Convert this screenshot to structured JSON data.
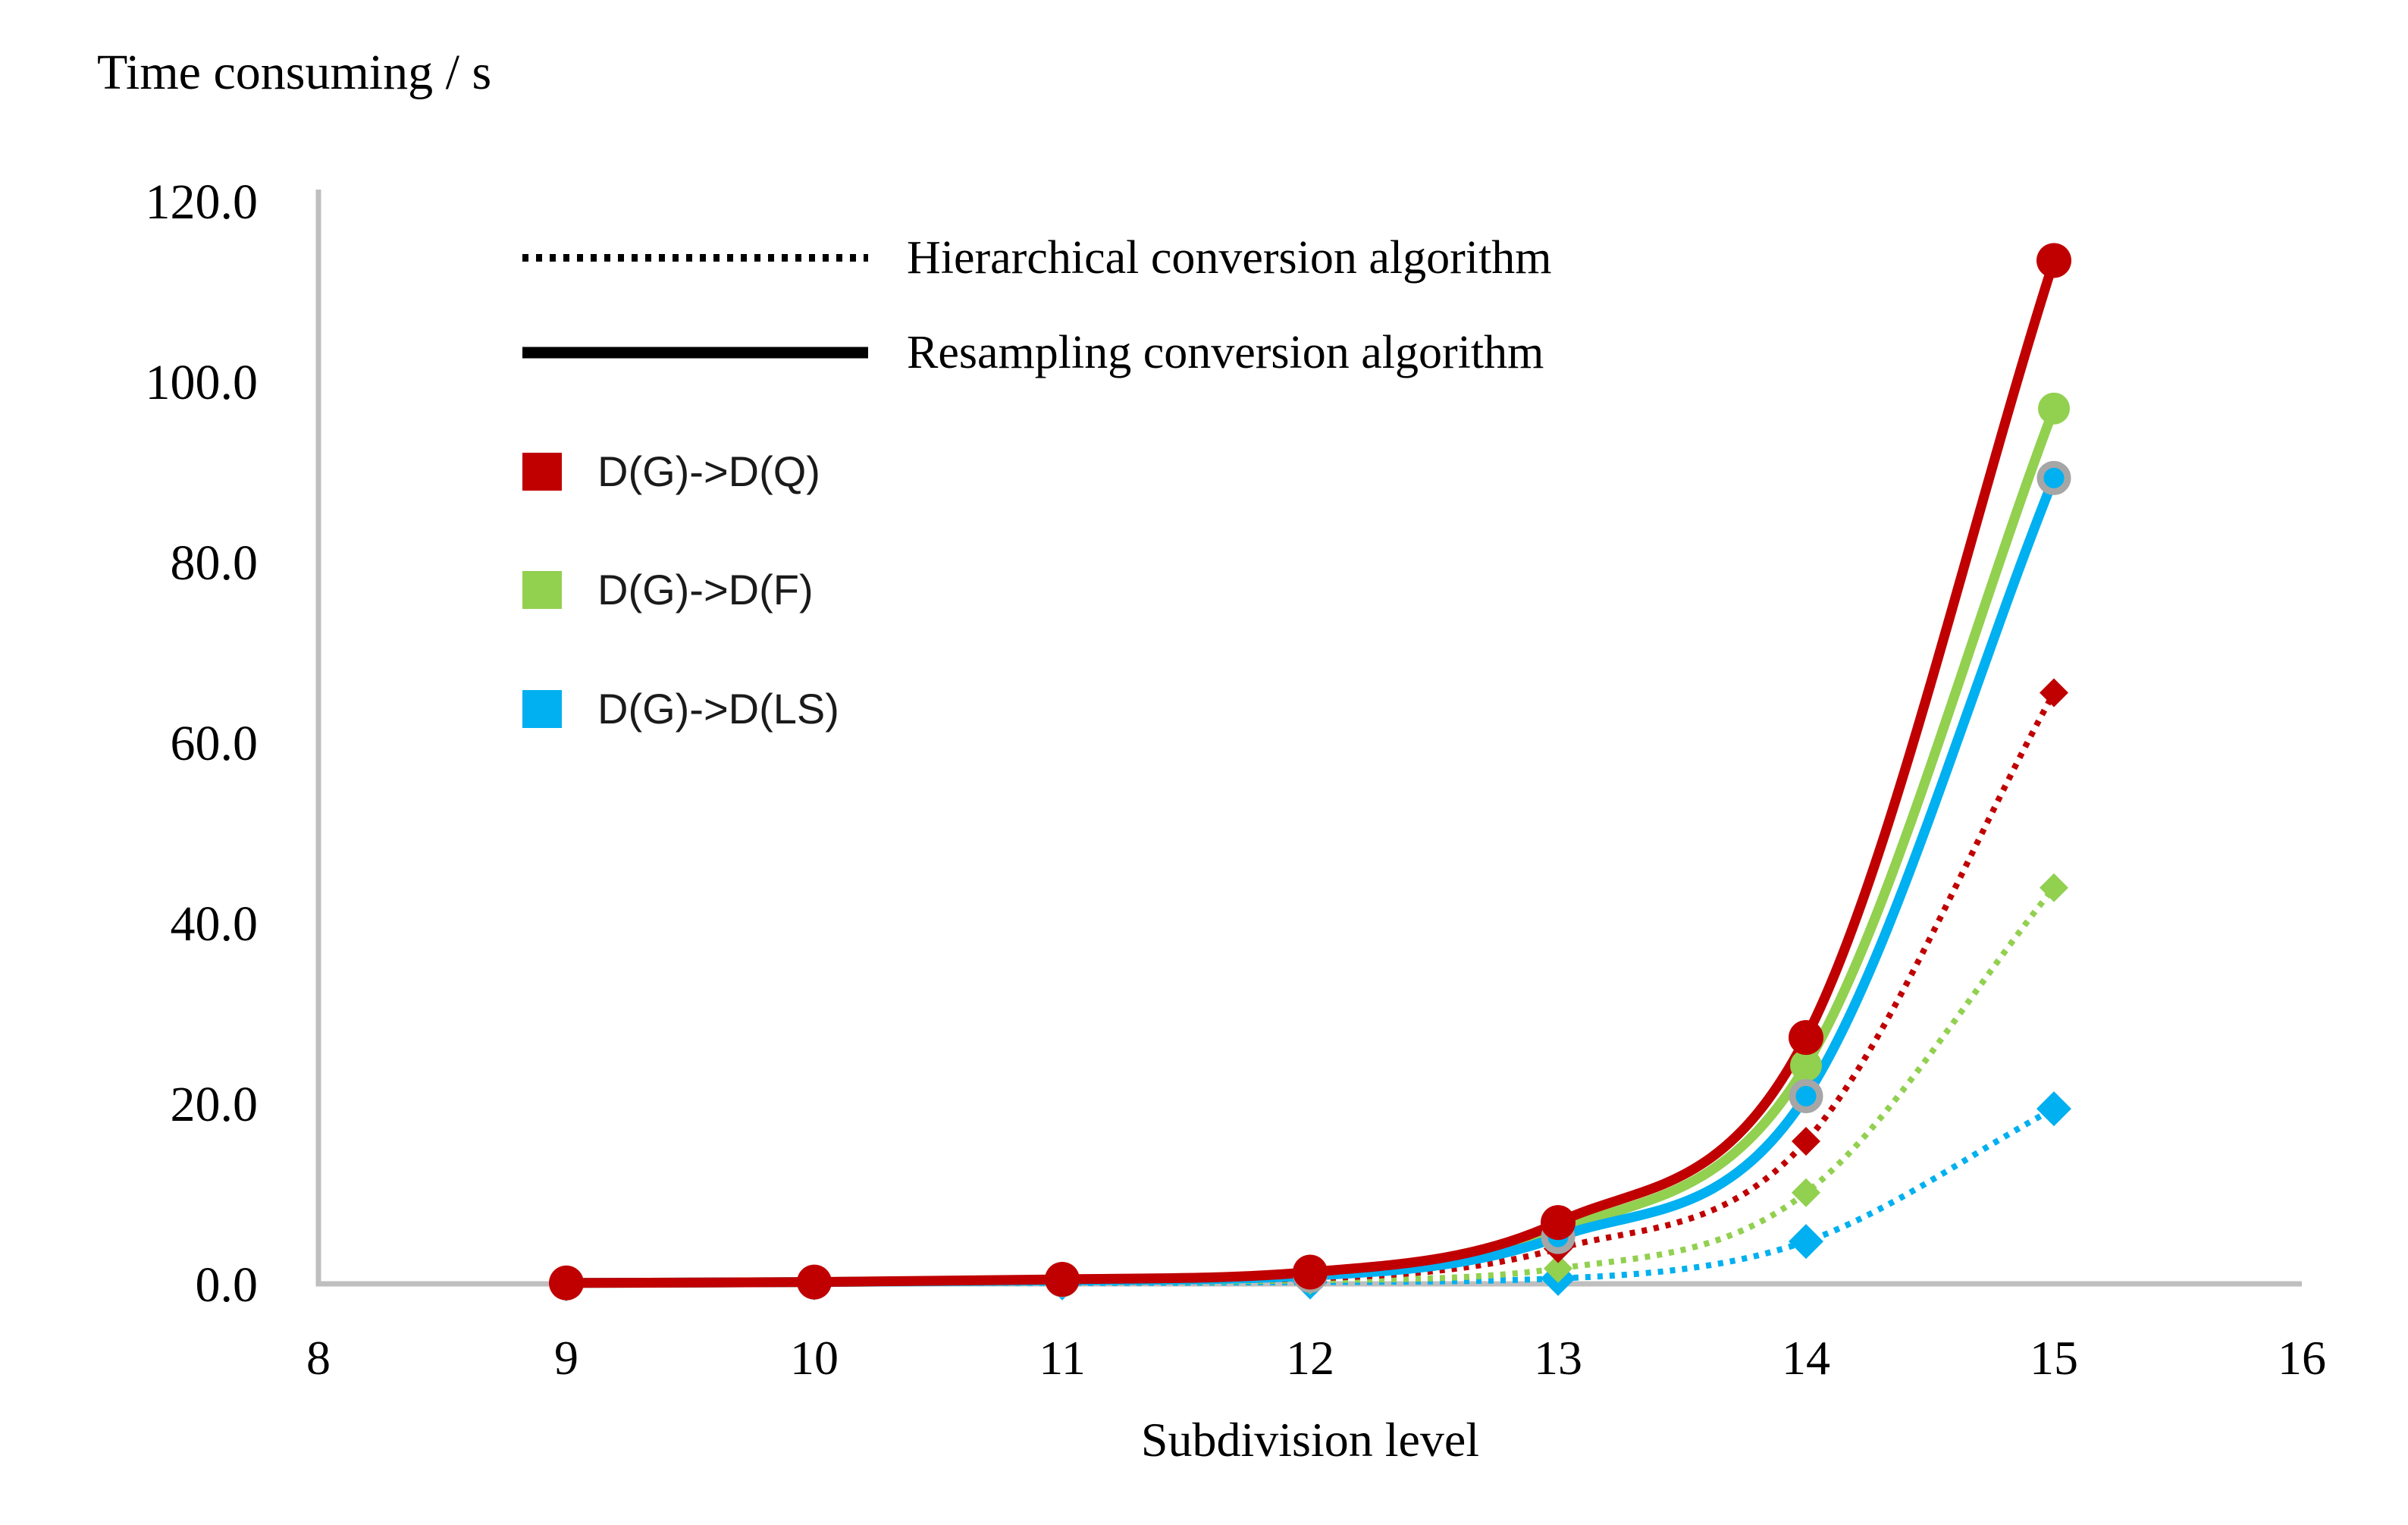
{
  "title": "Time consuming / s",
  "chart_data": {
    "type": "line",
    "title": "Time consuming / s",
    "xlabel": "Subdivision level",
    "ylabel": "Time consuming / s",
    "x": [
      9,
      10,
      11,
      12,
      13,
      14,
      15
    ],
    "xlim": [
      8,
      16
    ],
    "ylim": [
      0,
      120
    ],
    "grid": false,
    "x_ticks": [
      "8",
      "9",
      "10",
      "11",
      "12",
      "13",
      "14",
      "15",
      "16"
    ],
    "y_ticks": [
      {
        "value": 120,
        "label": "120.0"
      },
      {
        "value": 100,
        "label": "100.0"
      },
      {
        "value": 80,
        "label": "80.0"
      },
      {
        "value": 60,
        "label": "60.0"
      },
      {
        "value": 40,
        "label": "40.0"
      },
      {
        "value": 20,
        "label": "20.0"
      },
      {
        "value": 0,
        "label": "0.0"
      }
    ],
    "series": [
      {
        "name": "Hierarchical D(G)->D(LS)",
        "algorithm": "Hierarchical conversion algorithm",
        "conversion": "D(G)->D(LS)",
        "style": "dotted",
        "marker": "diamond",
        "color": "#00B0F0",
        "values": [
          0.0,
          0.1,
          0.1,
          0.2,
          0.6,
          4.7,
          19.4
        ]
      },
      {
        "name": "Hierarchical D(G)->D(F)",
        "algorithm": "Hierarchical conversion algorithm",
        "conversion": "D(G)->D(F)",
        "style": "dotted",
        "marker": "diamond",
        "color": "#92D050",
        "values": [
          0.0,
          0.1,
          0.2,
          0.4,
          1.7,
          10.1,
          43.9
        ]
      },
      {
        "name": "Hierarchical D(G)->D(Q)",
        "algorithm": "Hierarchical conversion algorithm",
        "conversion": "D(G)->D(Q)",
        "style": "dotted",
        "marker": "diamond",
        "color": "#C00000",
        "values": [
          0.1,
          0.1,
          0.3,
          0.6,
          3.9,
          15.8,
          65.5
        ]
      },
      {
        "name": "Resampling D(G)->D(F)",
        "algorithm": "Resampling conversion algorithm",
        "conversion": "D(G)->D(F)",
        "style": "solid",
        "marker": "circle",
        "color": "#92D050",
        "values": [
          0.1,
          0.2,
          0.4,
          1.0,
          5.8,
          24.2,
          97.0
        ]
      },
      {
        "name": "Resampling D(G)->D(LS)",
        "algorithm": "Resampling conversion algorithm",
        "conversion": "D(G)->D(LS)",
        "style": "solid",
        "marker": "circle-gray-ring",
        "color": "#00B0F0",
        "values": [
          0.1,
          0.2,
          0.4,
          0.9,
          5.2,
          20.8,
          89.3
        ]
      },
      {
        "name": "Resampling D(G)->D(Q)",
        "algorithm": "Resampling conversion algorithm",
        "conversion": "D(G)->D(Q)",
        "style": "solid",
        "marker": "circle",
        "color": "#C00000",
        "values": [
          0.1,
          0.2,
          0.5,
          1.3,
          6.8,
          27.3,
          113.4
        ]
      }
    ],
    "legend": {
      "position": "inside-top-left",
      "line_style_items": [
        {
          "label": "Hierarchical conversion algorithm",
          "style": "dotted"
        },
        {
          "label": "Resampling conversion algorithm",
          "style": "solid"
        }
      ],
      "color_items": [
        {
          "label": "D(G)->D(Q)",
          "color": "#C00000"
        },
        {
          "label": "D(G)->D(F)",
          "color": "#92D050"
        },
        {
          "label": "D(G)->D(LS)",
          "color": "#00B0F0"
        }
      ]
    }
  },
  "colors": {
    "red": "#C00000",
    "green": "#92D050",
    "blue": "#00B0F0",
    "marker_ring_gray": "#A6A6A6",
    "axis_gray": "#BFBFBF",
    "legend_line_black": "#000000",
    "text": "#000000"
  }
}
